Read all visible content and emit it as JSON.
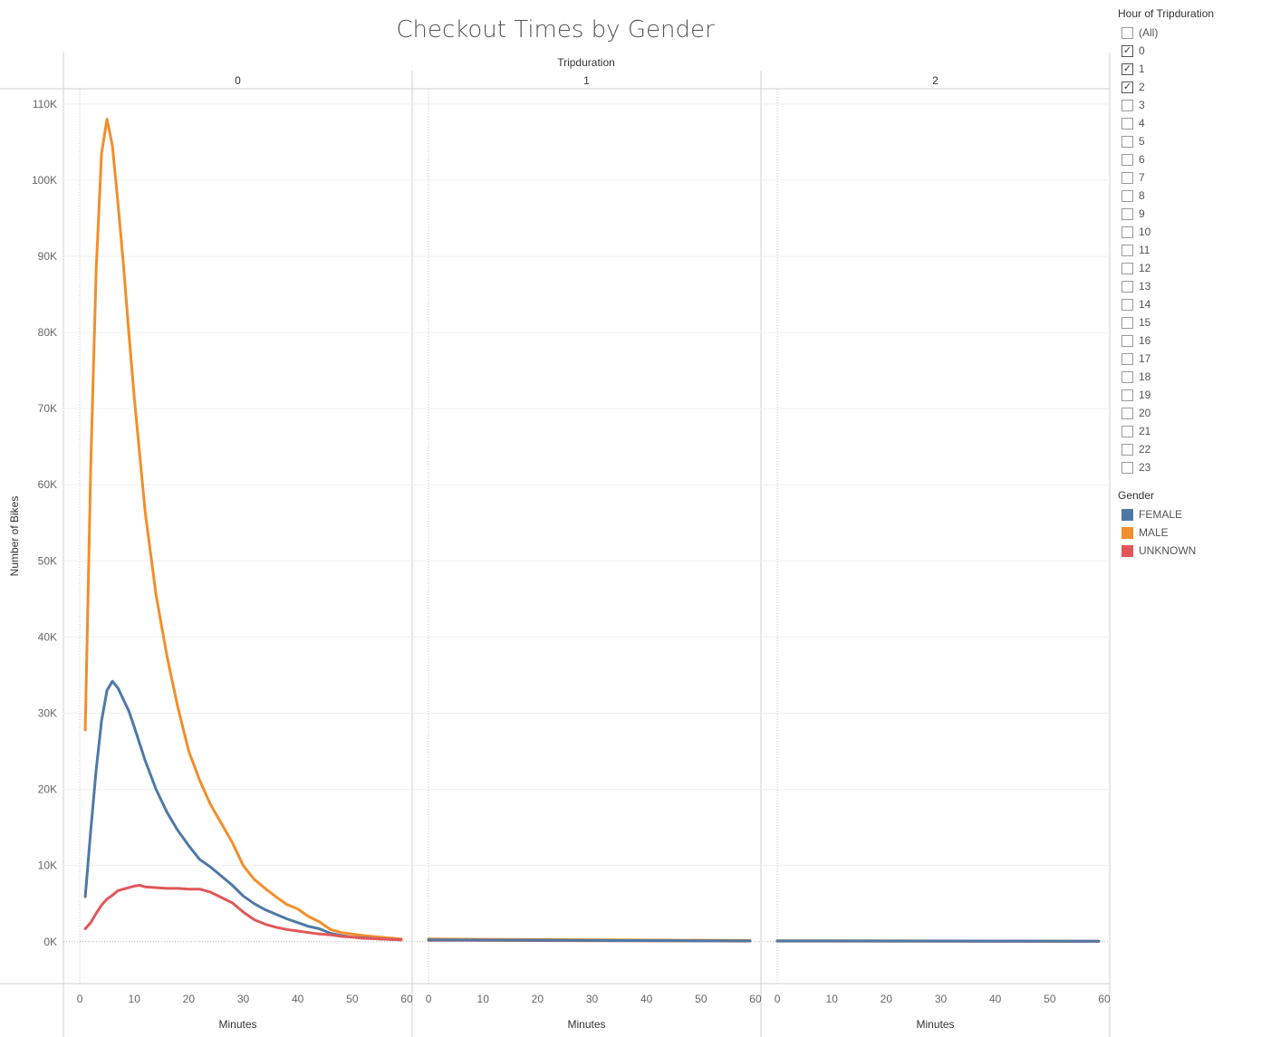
{
  "chart_data": {
    "type": "line",
    "title": "Checkout Times by Gender",
    "column_field": "Tripduration",
    "ylabel": "Number of Bikes",
    "xlabel": "Minutes",
    "ylim": [
      -5500,
      112000
    ],
    "yticks": [
      0,
      10000,
      20000,
      30000,
      40000,
      50000,
      60000,
      70000,
      80000,
      90000,
      100000,
      110000
    ],
    "ytick_labels": [
      "0K",
      "10K",
      "20K",
      "30K",
      "40K",
      "50K",
      "60K",
      "70K",
      "80K",
      "90K",
      "100K",
      "110K"
    ],
    "xlim": [
      -3,
      61
    ],
    "xticks": [
      0,
      10,
      20,
      30,
      40,
      50,
      60
    ],
    "grid": true,
    "legend_position": "right",
    "panels": [
      {
        "label": "0",
        "series": [
          {
            "name": "MALE",
            "color": "#f28e2b",
            "x": [
              1,
              2,
              3,
              4,
              5,
              6,
              7,
              8,
              9,
              10,
              12,
              14,
              16,
              18,
              20,
              22,
              24,
              26,
              28,
              30,
              32,
              34,
              36,
              38,
              40,
              42,
              44,
              46,
              48,
              50,
              52,
              55,
              59
            ],
            "y": [
              27800,
              62000,
              88000,
              103500,
              108000,
              104500,
              97000,
              89000,
              80000,
              71500,
              56500,
              45500,
              37500,
              30800,
              25000,
              21200,
              18000,
              15500,
              13000,
              10000,
              8200,
              7000,
              5900,
              4900,
              4300,
              3300,
              2600,
              1600,
              1200,
              1000,
              800,
              600,
              350
            ]
          },
          {
            "name": "FEMALE",
            "color": "#4e79a7",
            "x": [
              1,
              2,
              3,
              4,
              5,
              6,
              7,
              8,
              9,
              10,
              12,
              14,
              16,
              18,
              20,
              22,
              24,
              26,
              28,
              30,
              32,
              34,
              36,
              38,
              40,
              42,
              44,
              46,
              48,
              50,
              52,
              55,
              59
            ],
            "y": [
              5900,
              14500,
              22500,
              29000,
              33000,
              34200,
              33300,
              31800,
              30300,
              28200,
              23800,
              20000,
              17000,
              14600,
              12600,
              10800,
              9800,
              8600,
              7400,
              6000,
              5000,
              4200,
              3600,
              3000,
              2500,
              2000,
              1700,
              1100,
              800,
              600,
              500,
              350,
              250
            ]
          },
          {
            "name": "UNKNOWN",
            "color": "#e15759",
            "x": [
              1,
              2,
              3,
              4,
              5,
              6,
              7,
              8,
              9,
              10,
              11,
              12,
              14,
              16,
              18,
              20,
              22,
              24,
              26,
              28,
              30,
              32,
              34,
              36,
              38,
              40,
              42,
              44,
              46,
              48,
              50,
              52,
              55,
              59
            ],
            "y": [
              1700,
              2500,
              3700,
              4800,
              5600,
              6100,
              6700,
              6900,
              7100,
              7300,
              7400,
              7200,
              7100,
              7000,
              7000,
              6900,
              6900,
              6500,
              5800,
              5100,
              3900,
              2900,
              2300,
              1900,
              1600,
              1400,
              1200,
              1000,
              900,
              700,
              600,
              450,
              350,
              250
            ]
          }
        ]
      },
      {
        "label": "1",
        "series": [
          {
            "name": "MALE",
            "color": "#f28e2b",
            "x": [
              0,
              59
            ],
            "y": [
              350,
              150
            ]
          },
          {
            "name": "UNKNOWN",
            "color": "#e15759",
            "x": [
              0,
              59
            ],
            "y": [
              180,
              80
            ]
          },
          {
            "name": "FEMALE",
            "color": "#4e79a7",
            "x": [
              0,
              59
            ],
            "y": [
              230,
              100
            ]
          }
        ]
      },
      {
        "label": "2",
        "series": [
          {
            "name": "MALE",
            "color": "#f28e2b",
            "x": [
              0,
              59
            ],
            "y": [
              130,
              70
            ]
          },
          {
            "name": "UNKNOWN",
            "color": "#e15759",
            "x": [
              0,
              59
            ],
            "y": [
              80,
              40
            ]
          },
          {
            "name": "FEMALE",
            "color": "#4e79a7",
            "x": [
              0,
              59
            ],
            "y": [
              100,
              60
            ]
          }
        ]
      }
    ]
  },
  "filter": {
    "title": "Hour of Tripduration",
    "items": [
      {
        "label": "(All)",
        "checked": false
      },
      {
        "label": "0",
        "checked": true
      },
      {
        "label": "1",
        "checked": true
      },
      {
        "label": "2",
        "checked": true
      },
      {
        "label": "3",
        "checked": false
      },
      {
        "label": "4",
        "checked": false
      },
      {
        "label": "5",
        "checked": false
      },
      {
        "label": "6",
        "checked": false
      },
      {
        "label": "7",
        "checked": false
      },
      {
        "label": "8",
        "checked": false
      },
      {
        "label": "9",
        "checked": false
      },
      {
        "label": "10",
        "checked": false
      },
      {
        "label": "11",
        "checked": false
      },
      {
        "label": "12",
        "checked": false
      },
      {
        "label": "13",
        "checked": false
      },
      {
        "label": "14",
        "checked": false
      },
      {
        "label": "15",
        "checked": false
      },
      {
        "label": "16",
        "checked": false
      },
      {
        "label": "17",
        "checked": false
      },
      {
        "label": "18",
        "checked": false
      },
      {
        "label": "19",
        "checked": false
      },
      {
        "label": "20",
        "checked": false
      },
      {
        "label": "21",
        "checked": false
      },
      {
        "label": "22",
        "checked": false
      },
      {
        "label": "23",
        "checked": false
      }
    ]
  },
  "legend": {
    "title": "Gender",
    "items": [
      {
        "label": "FEMALE",
        "color": "#4e79a7"
      },
      {
        "label": "MALE",
        "color": "#f28e2b"
      },
      {
        "label": "UNKNOWN",
        "color": "#e15759"
      }
    ]
  }
}
